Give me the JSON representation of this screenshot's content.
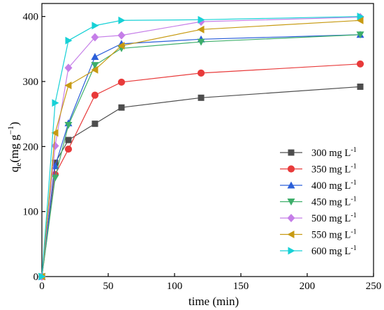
{
  "chart_data": {
    "type": "line",
    "title": "",
    "xlabel": "time (min)",
    "ylabel_main": "q",
    "ylabel_sub": "e",
    "ylabel_rest": "(mg g",
    "ylabel_sup": "−1",
    "ylabel_close": ")",
    "xlim": [
      0,
      250
    ],
    "ylim": [
      0,
      420
    ],
    "x_ticks": [
      0,
      50,
      100,
      150,
      200,
      250
    ],
    "y_ticks": [
      0,
      100,
      200,
      300,
      400
    ],
    "grid": false,
    "legend_position": "bottom-right",
    "x": [
      0,
      10,
      20,
      40,
      60,
      120,
      240
    ],
    "series": [
      {
        "name": "300 mg L",
        "unit_sup": "-1",
        "color": "#4d4d4d",
        "marker": "square",
        "values": [
          0,
          175,
          210,
          235,
          260,
          275,
          292
        ]
      },
      {
        "name": "350 mg L",
        "unit_sup": "-1",
        "color": "#e83a3a",
        "marker": "circle",
        "values": [
          0,
          157,
          196,
          279,
          299,
          313,
          327
        ]
      },
      {
        "name": "400 mg L",
        "unit_sup": "-1",
        "color": "#2b5fd9",
        "marker": "triangle-up",
        "values": [
          0,
          170,
          236,
          338,
          358,
          365,
          372
        ]
      },
      {
        "name": "450 mg L",
        "unit_sup": "-1",
        "color": "#3dae6a",
        "marker": "triangle-down",
        "values": [
          0,
          152,
          233,
          325,
          351,
          361,
          372
        ]
      },
      {
        "name": "500 mg L",
        "unit_sup": "-1",
        "color": "#c57ee8",
        "marker": "diamond",
        "values": [
          0,
          201,
          321,
          368,
          371,
          392,
          399
        ]
      },
      {
        "name": "550 mg L",
        "unit_sup": "-1",
        "color": "#c79a12",
        "marker": "triangle-left",
        "values": [
          0,
          221,
          294,
          318,
          355,
          380,
          394
        ]
      },
      {
        "name": "600 mg L",
        "unit_sup": "-1",
        "color": "#17d1d6",
        "marker": "triangle-right",
        "values": [
          0,
          267,
          363,
          386,
          394,
          395,
          400
        ]
      }
    ]
  }
}
